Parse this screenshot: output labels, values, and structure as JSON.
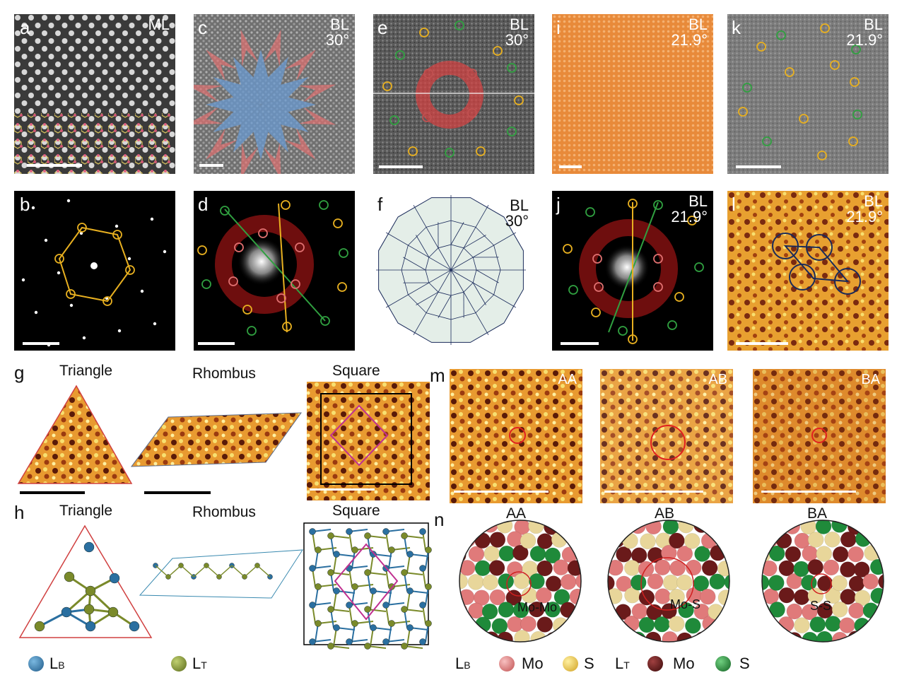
{
  "panels": {
    "a": {
      "letter": "a",
      "tag": "ML"
    },
    "b": {
      "letter": "b"
    },
    "c": {
      "letter": "c",
      "tag1": "BL",
      "tag2": "30°"
    },
    "d": {
      "letter": "d"
    },
    "e": {
      "letter": "e",
      "tag1": "BL",
      "tag2": "30°"
    },
    "f": {
      "letter": "f",
      "tag1": "BL",
      "tag2": "30°"
    },
    "g": {
      "letter": "g",
      "titles": [
        "Triangle",
        "Rhombus",
        "Square"
      ]
    },
    "h": {
      "letter": "h",
      "titles": [
        "Triangle",
        "Rhombus",
        "Square"
      ]
    },
    "i": {
      "letter": "i",
      "tag1": "BL",
      "tag2": "21.9°"
    },
    "j": {
      "letter": "j",
      "tag1": "BL",
      "tag2": "21.9°"
    },
    "k": {
      "letter": "k",
      "tag1": "BL",
      "tag2": "21.9°"
    },
    "l": {
      "letter": "l",
      "tag1": "BL",
      "tag2": "21.9°"
    },
    "m": {
      "letter": "m",
      "tags": [
        "AA",
        "AB",
        "BA"
      ]
    },
    "n": {
      "letter": "n",
      "titles": [
        "AA",
        "AB",
        "BA"
      ],
      "annotations": [
        "Mo-Mo",
        "Mo-S",
        "S-S"
      ]
    }
  },
  "legend": {
    "lb_label": "L",
    "lb_sub": "B",
    "lt_label": "L",
    "lt_sub": "T",
    "mo": "Mo",
    "s": "S"
  },
  "colors": {
    "lb_atom": "#2a6fa0",
    "lt_atom": "#7a8a2a",
    "mo_bottom": "#e07a7a",
    "s_bottom": "#e8d69a",
    "mo_top": "#6a1a1a",
    "s_top": "#1f8a3a",
    "yellow_ring": "#e8b020",
    "green_ring": "#30a040",
    "red_ring": "#d02020",
    "orange_bg": "#e88a3a"
  }
}
